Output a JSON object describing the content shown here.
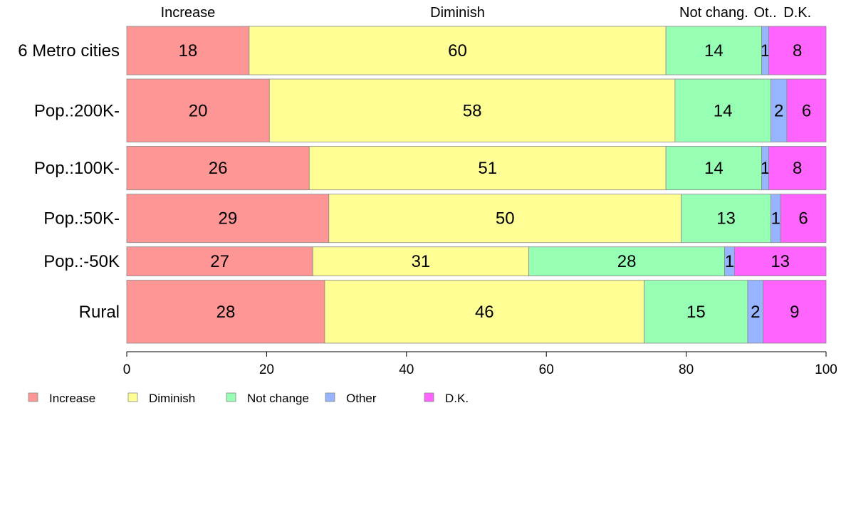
{
  "chart_data": {
    "type": "bar",
    "orientation": "horizontal",
    "stacked": true,
    "categories": [
      "6 Metro cities",
      "Pop.:200K-",
      "Pop.:100K-",
      "Pop.:50K-",
      "Pop.:-50K",
      "Rural"
    ],
    "series": [
      {
        "name": "Increase",
        "color": "#ff9696",
        "values": [
          17.5,
          20.4,
          26.1,
          28.9,
          26.6,
          28.3
        ]
      },
      {
        "name": "Diminish",
        "color": "#ffff96",
        "values": [
          59.6,
          58.0,
          51.0,
          50.4,
          30.9,
          45.7
        ]
      },
      {
        "name": "Not change",
        "color": "#96ffb4",
        "values": [
          13.7,
          13.7,
          13.7,
          12.8,
          28.0,
          14.8
        ]
      },
      {
        "name": "Other",
        "color": "#96b4ff",
        "values": [
          1.0,
          2.3,
          1.0,
          1.4,
          1.4,
          2.2
        ]
      },
      {
        "name": "D.K.",
        "color": "#ff64ff",
        "values": [
          8.2,
          5.6,
          8.2,
          6.5,
          13.1,
          9.0
        ]
      }
    ],
    "data_labels": [
      [
        "18",
        "60",
        "14",
        "1",
        "8"
      ],
      [
        "20",
        "58",
        "14",
        "2",
        "6"
      ],
      [
        "26",
        "51",
        "14",
        "1",
        "8"
      ],
      [
        "29",
        "50",
        "13",
        "1",
        "6"
      ],
      [
        "27",
        "31",
        "28",
        "1",
        "13"
      ],
      [
        "28",
        "46",
        "15",
        "2",
        "9"
      ]
    ],
    "row_weights": [
      1.0,
      1.3,
      0.9,
      1.0,
      0.6,
      1.3
    ],
    "top_labels": [
      "Increase",
      "Diminish",
      "Not chang.",
      "Ot..",
      "D.K."
    ],
    "xlim": [
      0,
      100
    ],
    "xticks": [
      0,
      20,
      40,
      60,
      80,
      100
    ],
    "grid": false,
    "legend_position": "bottom-left",
    "legend_entries": [
      "Increase",
      "Diminish",
      "Not change",
      "Other",
      "D.K."
    ]
  }
}
